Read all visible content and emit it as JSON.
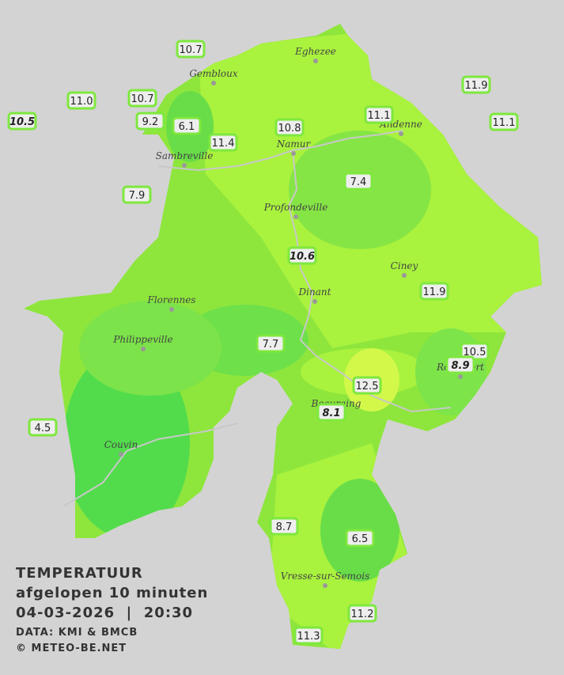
{
  "title": {
    "lines": [
      "TEMPERATUUR",
      "afgelopen 10 minuten",
      "04-03-2026  |  20:30"
    ],
    "credits": [
      "DATA: KMI & BMCB",
      "© METEO-BE.NET"
    ]
  },
  "towns": [
    "Eghezee",
    "Gembloux",
    "Andenne",
    "Namur",
    "Sambreville",
    "Profondeville",
    "Ciney",
    "Dinant",
    "Florennes",
    "Philippeville",
    "Rochefort",
    "Beauraing",
    "Couvin",
    "Vresse-sur-Semois"
  ],
  "stations": [
    {
      "label": "10.7",
      "italic": false
    },
    {
      "label": "10.7",
      "italic": false
    },
    {
      "label": "11.0",
      "italic": false
    },
    {
      "label": "10.5",
      "italic": true
    },
    {
      "label": "9.2",
      "italic": false
    },
    {
      "label": "6.1",
      "italic": false
    },
    {
      "label": "11.4",
      "italic": false
    },
    {
      "label": "10.8",
      "italic": false
    },
    {
      "label": "11.1",
      "italic": false
    },
    {
      "label": "11.9",
      "italic": false
    },
    {
      "label": "11.1",
      "italic": false
    },
    {
      "label": "7.9",
      "italic": false
    },
    {
      "label": "7.4",
      "italic": false
    },
    {
      "label": "10.6",
      "italic": true
    },
    {
      "label": "11.9",
      "italic": false
    },
    {
      "label": "7.7",
      "italic": false
    },
    {
      "label": "10.5",
      "italic": false
    },
    {
      "label": "8.9",
      "italic": true
    },
    {
      "label": "12.5",
      "italic": false
    },
    {
      "label": "8.1",
      "italic": true
    },
    {
      "label": "4.5",
      "italic": false
    },
    {
      "label": "8.7",
      "italic": false
    },
    {
      "label": "6.5",
      "italic": false
    },
    {
      "label": "11.2",
      "italic": false
    },
    {
      "label": "11.3",
      "italic": false
    }
  ]
}
